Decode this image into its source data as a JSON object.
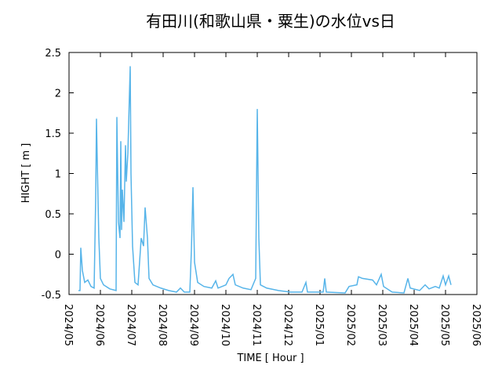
{
  "chart_data": {
    "type": "line",
    "title": "有田川(和歌山県・粟生)の水位vs日",
    "x_label": "TIME [ Hour ]",
    "y_label": "HIGHT [ m ]",
    "xlim": [
      0,
      13
    ],
    "xticks": [
      {
        "value": 0,
        "label": "2024/05"
      },
      {
        "value": 1,
        "label": "2024/06"
      },
      {
        "value": 2,
        "label": "2024/07"
      },
      {
        "value": 3,
        "label": "2024/08"
      },
      {
        "value": 4,
        "label": "2024/09"
      },
      {
        "value": 5,
        "label": "2024/10"
      },
      {
        "value": 6,
        "label": "2024/11"
      },
      {
        "value": 7,
        "label": "2024/12"
      },
      {
        "value": 8,
        "label": "2025/01"
      },
      {
        "value": 9,
        "label": "2025/02"
      },
      {
        "value": 10,
        "label": "2025/03"
      },
      {
        "value": 11,
        "label": "2025/04"
      },
      {
        "value": 12,
        "label": "2025/05"
      },
      {
        "value": 13,
        "label": "2025/06"
      }
    ],
    "ylim": [
      -0.5,
      2.5
    ],
    "yticks": [
      -0.5,
      0,
      0.5,
      1,
      1.5,
      2,
      2.5
    ],
    "grid": false,
    "series": [
      {
        "color": "#56b4e9",
        "x": [
          0.3,
          0.35,
          0.375,
          0.425,
          0.5,
          0.6,
          0.7,
          0.8,
          0.85,
          0.875,
          0.9,
          0.95,
          1.0,
          1.1,
          1.3,
          1.5,
          1.525,
          1.575,
          1.625,
          1.65,
          1.675,
          1.7,
          1.75,
          1.8,
          1.825,
          1.875,
          1.95,
          1.975,
          2.025,
          2.1,
          2.2,
          2.3,
          2.375,
          2.425,
          2.5,
          2.55,
          2.675,
          2.925,
          3.175,
          3.425,
          3.55,
          3.675,
          3.85,
          3.9,
          3.95,
          4.0,
          4.1,
          4.3,
          4.55,
          4.675,
          4.75,
          5.0,
          5.1,
          5.225,
          5.3,
          5.55,
          5.8,
          5.95,
          6.0,
          6.05,
          6.1,
          6.3,
          6.675,
          7.05,
          7.425,
          7.55,
          7.6,
          8.1,
          8.15,
          8.2,
          8.8,
          8.925,
          9.175,
          9.225,
          9.35,
          9.675,
          9.8,
          9.95,
          10.025,
          10.3,
          10.675,
          10.8,
          10.875,
          11.175,
          11.35,
          11.475,
          11.675,
          11.8,
          11.925,
          12.0,
          12.1,
          12.175
        ],
        "values": [
          -0.45,
          -0.45,
          0.08,
          -0.2,
          -0.35,
          -0.32,
          -0.4,
          -0.42,
          0.7,
          1.68,
          1.15,
          0.2,
          -0.3,
          -0.38,
          -0.43,
          -0.45,
          1.7,
          0.4,
          0.2,
          1.4,
          0.3,
          0.8,
          0.4,
          1.35,
          0.9,
          1.25,
          2.33,
          1.0,
          0.1,
          -0.35,
          -0.38,
          0.2,
          0.1,
          0.58,
          0.2,
          -0.3,
          -0.38,
          -0.42,
          -0.45,
          -0.47,
          -0.42,
          -0.47,
          -0.47,
          0.05,
          0.83,
          -0.1,
          -0.35,
          -0.4,
          -0.42,
          -0.33,
          -0.42,
          -0.38,
          -0.3,
          -0.25,
          -0.38,
          -0.42,
          -0.44,
          -0.3,
          1.8,
          0.2,
          -0.38,
          -0.42,
          -0.45,
          -0.47,
          -0.47,
          -0.35,
          -0.47,
          -0.47,
          -0.3,
          -0.47,
          -0.48,
          -0.4,
          -0.38,
          -0.28,
          -0.3,
          -0.32,
          -0.38,
          -0.25,
          -0.4,
          -0.47,
          -0.48,
          -0.3,
          -0.42,
          -0.45,
          -0.38,
          -0.43,
          -0.4,
          -0.42,
          -0.27,
          -0.38,
          -0.27,
          -0.38
        ]
      }
    ]
  }
}
